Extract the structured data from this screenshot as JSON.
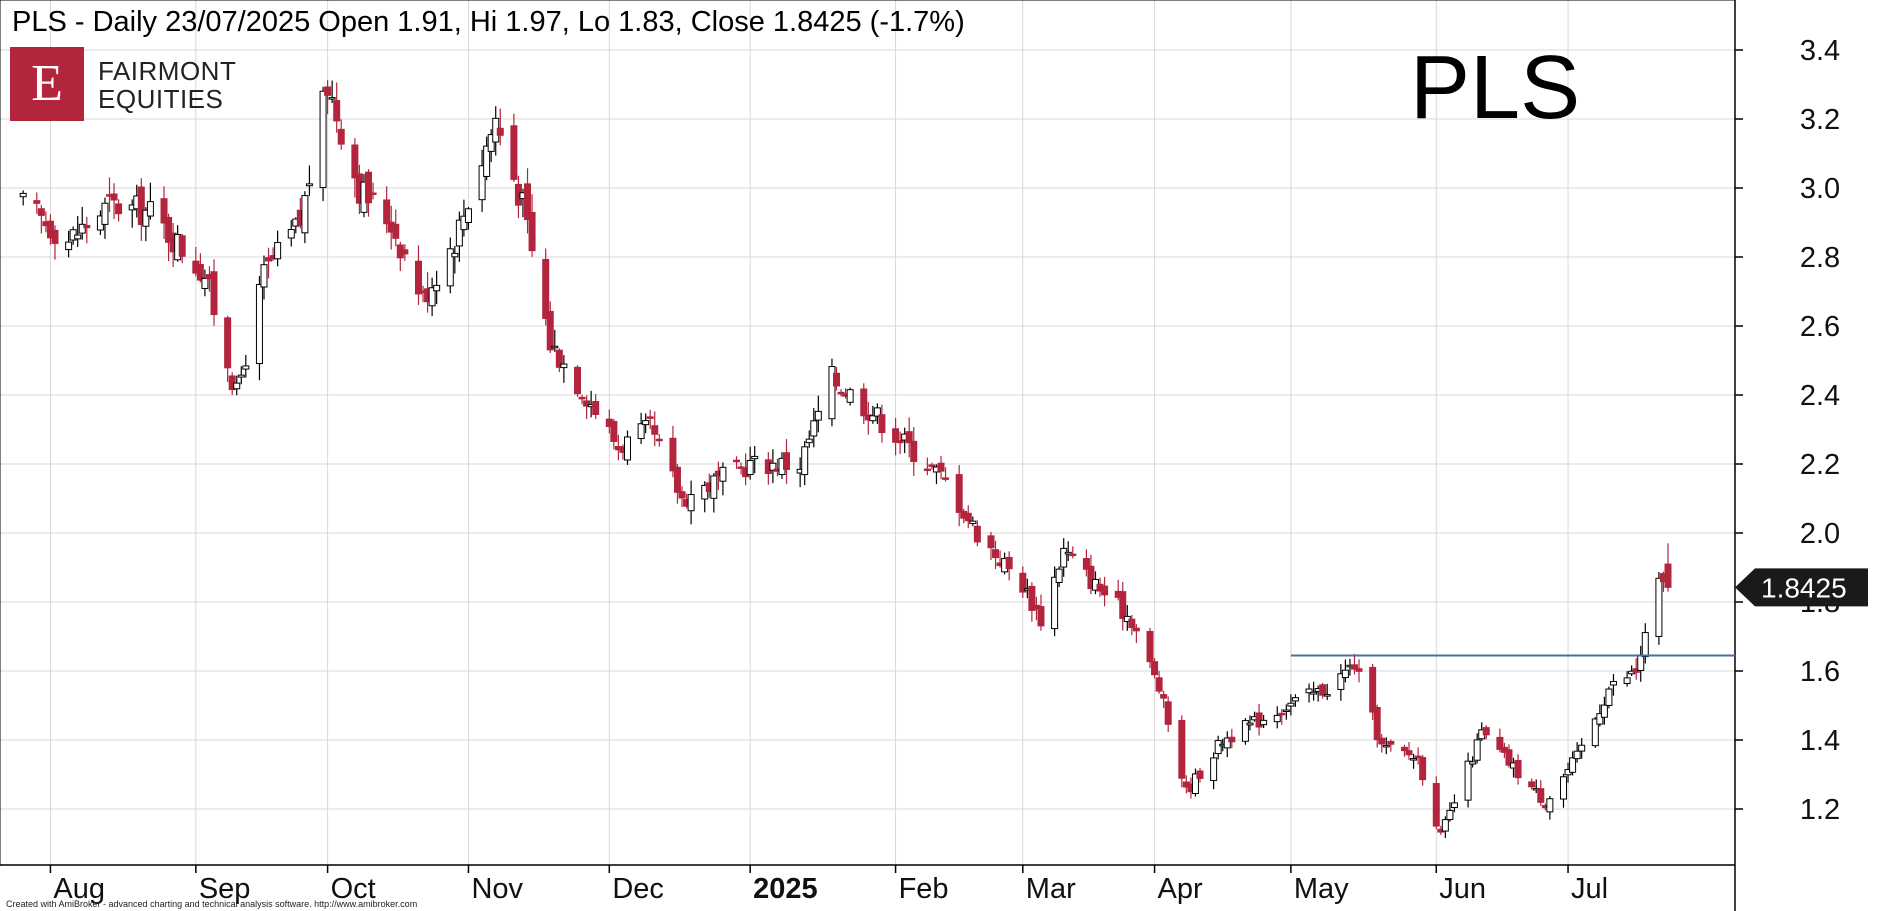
{
  "header": {
    "title": "PLS - Daily 23/07/2025 Open 1.91, Hi 1.97, Lo 1.83, Close 1.8425 (-1.7%)",
    "watermark": "PLS"
  },
  "logo": {
    "letter": "E",
    "line1": "FAIRMONT",
    "line2": "EQUITIES",
    "color": "#b3243d"
  },
  "footer": {
    "credit": "Created with AmiBroker - advanced charting and technical analysis software. http://www.amibroker.com"
  },
  "colors": {
    "up": "#ffffff",
    "down": "#b3243d",
    "grid": "#d8d8d8",
    "level_line": "#4a6fa5",
    "price_tag": "#1a1a1a"
  },
  "chart_data": {
    "type": "candlestick",
    "ylim": [
      1.05,
      3.5
    ],
    "y_ticks": [
      "1.2",
      "1.4",
      "1.6",
      "1.8",
      "2.0",
      "2.2",
      "2.4",
      "2.6",
      "2.8",
      "3.0",
      "3.2",
      "3.4"
    ],
    "x_labels": [
      "Aug",
      "Sep",
      "Oct",
      "Nov",
      "Dec",
      "2025",
      "Feb",
      "Mar",
      "Apr",
      "May",
      "Jun",
      "Jul"
    ],
    "x_label_dates": [
      "2024-08-01",
      "2024-09-02",
      "2024-10-01",
      "2024-11-01",
      "2024-12-02",
      "2025-01-02",
      "2025-02-03",
      "2025-03-03",
      "2025-04-01",
      "2025-05-01",
      "2025-06-02",
      "2025-07-01"
    ],
    "resistance_level": {
      "value": 1.645,
      "from": "2025-05-01",
      "to": "2025-07-31"
    },
    "last_price_label": "1.8425",
    "last_price": 1.8425,
    "last_bar": {
      "date": "2025-07-23",
      "open": 1.91,
      "high": 1.97,
      "low": 1.83,
      "close": 1.8425
    },
    "close_path": [
      [
        "2024-07-26",
        2.95
      ],
      [
        "2024-08-05",
        2.85
      ],
      [
        "2024-08-14",
        2.95
      ],
      [
        "2024-08-23",
        2.93
      ],
      [
        "2024-09-04",
        2.75
      ],
      [
        "2024-09-11",
        2.4
      ],
      [
        "2024-09-17",
        2.75
      ],
      [
        "2024-09-25",
        2.9
      ],
      [
        "2024-10-01",
        3.3
      ],
      [
        "2024-10-08",
        3.0
      ],
      [
        "2024-10-15",
        2.9
      ],
      [
        "2024-10-22",
        2.68
      ],
      [
        "2024-10-29",
        2.85
      ],
      [
        "2024-11-07",
        3.2
      ],
      [
        "2024-11-13",
        2.95
      ],
      [
        "2024-11-19",
        2.55
      ],
      [
        "2024-11-27",
        2.4
      ],
      [
        "2024-12-04",
        2.25
      ],
      [
        "2024-12-11",
        2.3
      ],
      [
        "2024-12-18",
        2.1
      ],
      [
        "2025-01-02",
        2.2
      ],
      [
        "2025-01-13",
        2.2
      ],
      [
        "2025-01-20",
        2.45
      ],
      [
        "2025-01-29",
        2.35
      ],
      [
        "2025-02-06",
        2.25
      ],
      [
        "2025-02-14",
        2.15
      ],
      [
        "2025-02-21",
        2.0
      ],
      [
        "2025-03-03",
        1.85
      ],
      [
        "2025-03-07",
        1.75
      ],
      [
        "2025-03-12",
        1.95
      ],
      [
        "2025-03-19",
        1.85
      ],
      [
        "2025-03-27",
        1.75
      ],
      [
        "2025-04-02",
        1.55
      ],
      [
        "2025-04-08",
        1.25
      ],
      [
        "2025-04-16",
        1.4
      ],
      [
        "2025-04-30",
        1.5
      ],
      [
        "2025-05-09",
        1.55
      ],
      [
        "2025-05-15",
        1.62
      ],
      [
        "2025-05-21",
        1.38
      ],
      [
        "2025-05-29",
        1.35
      ],
      [
        "2025-06-03",
        1.12
      ],
      [
        "2025-06-12",
        1.42
      ],
      [
        "2025-06-19",
        1.32
      ],
      [
        "2025-06-26",
        1.22
      ],
      [
        "2025-07-03",
        1.35
      ],
      [
        "2025-07-10",
        1.55
      ],
      [
        "2025-07-16",
        1.6
      ],
      [
        "2025-07-21",
        1.85
      ],
      [
        "2025-07-23",
        1.8425
      ]
    ]
  }
}
